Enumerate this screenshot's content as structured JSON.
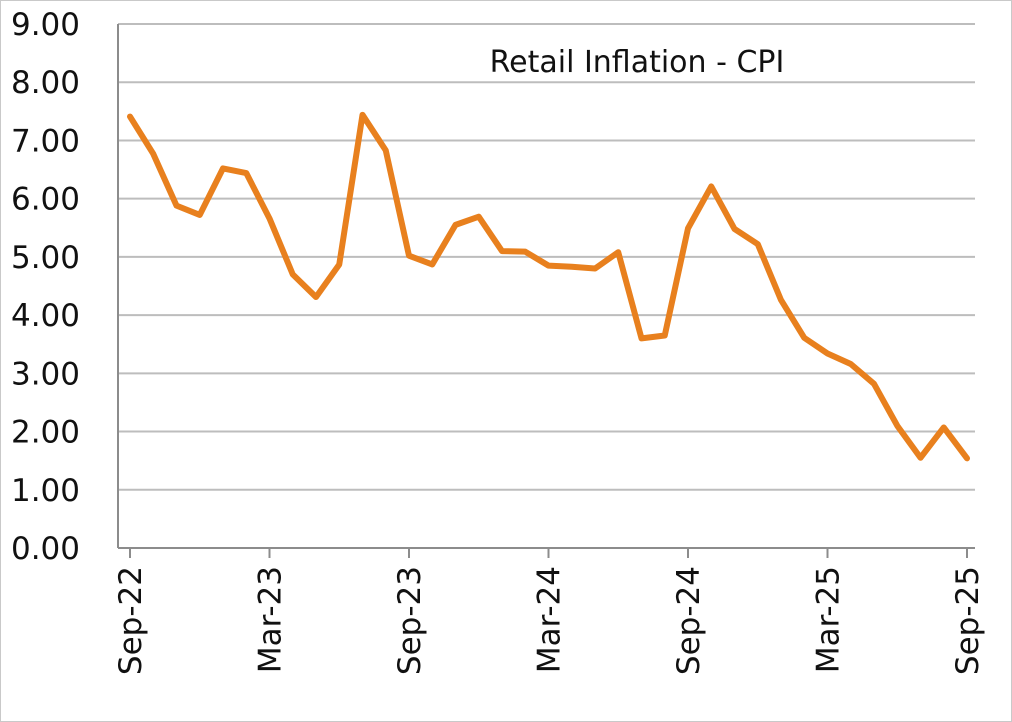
{
  "chart_data": {
    "type": "line",
    "title": "Retail Inflation - CPI",
    "xlabel": "",
    "ylabel": "",
    "ylim": [
      0,
      9
    ],
    "y_ticks": [
      "0.00",
      "1.00",
      "2.00",
      "3.00",
      "4.00",
      "5.00",
      "6.00",
      "7.00",
      "8.00",
      "9.00"
    ],
    "x_tick_labels": [
      "Sep-22",
      "Mar-23",
      "Sep-23",
      "Mar-24",
      "Sep-24",
      "Mar-25",
      "Sep-25"
    ],
    "grid": true,
    "series": [
      {
        "color": "#E8801E",
        "x": [
          "Sep-22",
          "Oct-22",
          "Nov-22",
          "Dec-22",
          "Jan-23",
          "Feb-23",
          "Mar-23",
          "Apr-23",
          "May-23",
          "Jun-23",
          "Jul-23",
          "Aug-23",
          "Sep-23",
          "Oct-23",
          "Nov-23",
          "Dec-23",
          "Jan-24",
          "Feb-24",
          "Mar-24",
          "Apr-24",
          "May-24",
          "Jun-24",
          "Jul-24",
          "Aug-24",
          "Sep-24",
          "Oct-24",
          "Nov-24",
          "Dec-24",
          "Jan-25",
          "Feb-25",
          "Mar-25",
          "Apr-25",
          "May-25",
          "Jun-25",
          "Jul-25",
          "Aug-25",
          "Sep-25"
        ],
        "values": [
          7.41,
          6.77,
          5.88,
          5.72,
          6.52,
          6.44,
          5.66,
          4.7,
          4.31,
          4.87,
          7.44,
          6.83,
          5.02,
          4.87,
          5.55,
          5.69,
          5.1,
          5.09,
          4.85,
          4.83,
          4.8,
          5.08,
          3.6,
          3.65,
          5.49,
          6.21,
          5.48,
          5.22,
          4.26,
          3.61,
          3.34,
          3.16,
          2.82,
          2.1,
          1.55,
          2.07,
          1.54
        ]
      }
    ]
  }
}
